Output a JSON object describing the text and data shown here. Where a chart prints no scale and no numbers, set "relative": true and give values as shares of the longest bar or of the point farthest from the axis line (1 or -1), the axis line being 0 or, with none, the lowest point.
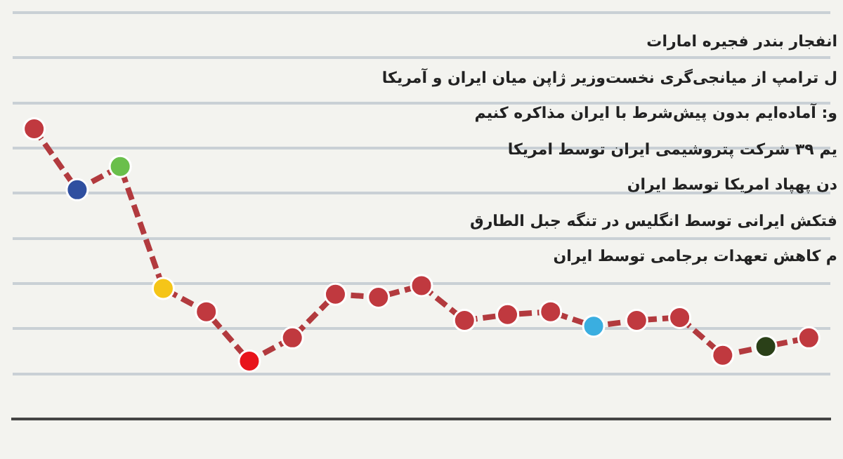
{
  "chart_data": {
    "type": "line",
    "relative": true,
    "categories": [
      null,
      null,
      null,
      null,
      null,
      null,
      null,
      null,
      null,
      null,
      null,
      null,
      null,
      null,
      null,
      null,
      null,
      null,
      null
    ],
    "series": [
      {
        "color": "#b23a3e",
        "colors": [
          "#c0393f",
          "#2f4fa0",
          "#6abf4b",
          "#f5c518",
          "#c0393f",
          "#e8141b",
          "#c0393f",
          "#c0393f",
          "#c0393f",
          "#c0393f",
          "#c0393f",
          "#c0393f",
          "#c0393f",
          "#3aaee0",
          "#c0393f",
          "#c0393f",
          "#c0393f",
          "#2a4018",
          "#c0393f"
        ],
        "values": [
          1,
          0.79,
          0.87,
          0.45,
          0.37,
          0.2,
          0.28,
          0.43,
          0.42,
          0.46,
          0.34,
          0.36,
          0.37,
          0.32,
          0.34,
          0.35,
          0.22,
          0.25,
          0.28
        ]
      }
    ],
    "grid": "y",
    "marker": "circle",
    "line_style": "dashed",
    "annotations": [
      "انفجار بندر فجیره امارات",
      "ل ترامپ از میانجی‌گری نخست‌وزیر ژاپن میان ایران و آمریکا",
      "و: آماده‌ایم بدون پیش‌شرط با ایران مذاکره کنیم",
      "یم ۳۹ شرکت پتروشیمی ایران توسط امریکا",
      "دن پهپاد امریکا توسط ایران",
      "فتکش ایرانی توسط انگلیس در تنگه جبل الطارق",
      "م کاهش تعهدات برجامی توسط ایران"
    ]
  }
}
